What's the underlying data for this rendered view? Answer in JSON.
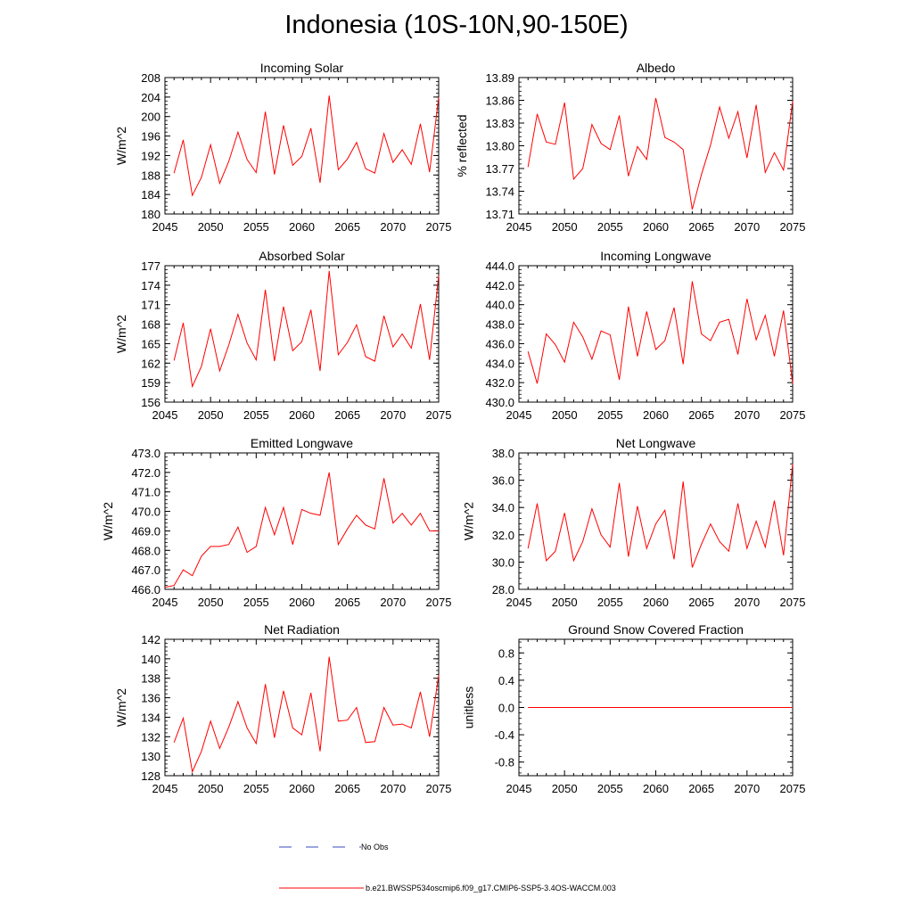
{
  "figure": {
    "title": "Indonesia (10S-10N,90-150E)"
  },
  "legend": {
    "items": [
      {
        "label": "No Obs",
        "color": "#3a4bbd",
        "style": "dashed"
      },
      {
        "label": "b.e21.BWSSP534oscmip6.f09_g17.CMIP6-SSP5-3.4OS-WACCM.003",
        "color": "#ff0000",
        "style": "solid"
      }
    ]
  },
  "chart_data": [
    {
      "type": "line",
      "title": "Incoming Solar",
      "ylabel": "W/m^2",
      "xlim": [
        2045,
        2075
      ],
      "ylim": [
        180,
        208
      ],
      "xticks": [
        "2045",
        "2050",
        "2055",
        "2060",
        "2065",
        "2070",
        "2075"
      ],
      "yticks": [
        "180",
        "184",
        "188",
        "192",
        "196",
        "200",
        "204",
        "208"
      ],
      "series": [
        {
          "color": "#ff0000",
          "x": [
            2046,
            2047,
            2048,
            2049,
            2050,
            2051,
            2052,
            2053,
            2054,
            2055,
            2056,
            2057,
            2058,
            2059,
            2060,
            2061,
            2062,
            2063,
            2064,
            2065,
            2066,
            2067,
            2068,
            2069,
            2070,
            2071,
            2072,
            2073,
            2074,
            2075
          ],
          "values": [
            188.4,
            195.2,
            183.8,
            187.5,
            194.2,
            186.3,
            190.8,
            196.8,
            191.2,
            188.5,
            201.0,
            188.1,
            198.2,
            190.0,
            191.8,
            197.6,
            186.4,
            204.3,
            189.1,
            191.3,
            194.7,
            189.3,
            188.4,
            196.5,
            190.6,
            193.2,
            190.2,
            198.5,
            188.6,
            204.0
          ]
        }
      ]
    },
    {
      "type": "line",
      "title": "Albedo",
      "ylabel": "% reflected",
      "xlim": [
        2045,
        2075
      ],
      "ylim": [
        13.71,
        13.89
      ],
      "xticks": [
        "2045",
        "2050",
        "2055",
        "2060",
        "2065",
        "2070",
        "2075"
      ],
      "yticks": [
        "13.71",
        "13.74",
        "13.77",
        "13.80",
        "13.83",
        "13.86",
        "13.89"
      ],
      "series": [
        {
          "color": "#ff0000",
          "x": [
            2046,
            2047,
            2048,
            2049,
            2050,
            2051,
            2052,
            2053,
            2054,
            2055,
            2056,
            2057,
            2058,
            2059,
            2060,
            2061,
            2062,
            2063,
            2064,
            2065,
            2066,
            2067,
            2068,
            2069,
            2070,
            2071,
            2072,
            2073,
            2074,
            2075
          ],
          "values": [
            13.772,
            13.842,
            13.805,
            13.802,
            13.857,
            13.756,
            13.77,
            13.828,
            13.803,
            13.795,
            13.84,
            13.76,
            13.799,
            13.782,
            13.863,
            13.811,
            13.805,
            13.795,
            13.716,
            13.762,
            13.801,
            13.851,
            13.81,
            13.845,
            13.784,
            13.854,
            13.765,
            13.791,
            13.768,
            13.859
          ]
        }
      ]
    },
    {
      "type": "line",
      "title": "Absorbed Solar",
      "ylabel": "W/m^2",
      "xlim": [
        2045,
        2075
      ],
      "ylim": [
        156,
        177
      ],
      "xticks": [
        "2045",
        "2050",
        "2055",
        "2060",
        "2065",
        "2070",
        "2075"
      ],
      "yticks": [
        "156",
        "159",
        "162",
        "165",
        "168",
        "171",
        "174",
        "177"
      ],
      "series": [
        {
          "color": "#ff0000",
          "x": [
            2046,
            2047,
            2048,
            2049,
            2050,
            2051,
            2052,
            2053,
            2054,
            2055,
            2056,
            2057,
            2058,
            2059,
            2060,
            2061,
            2062,
            2063,
            2064,
            2065,
            2066,
            2067,
            2068,
            2069,
            2070,
            2071,
            2072,
            2073,
            2074,
            2075
          ],
          "values": [
            162.4,
            168.2,
            158.4,
            161.5,
            167.3,
            160.8,
            164.8,
            169.5,
            165.1,
            162.5,
            173.3,
            162.3,
            170.7,
            163.9,
            165.3,
            170.2,
            160.8,
            176.2,
            163.3,
            165.2,
            167.9,
            163.0,
            162.3,
            169.3,
            164.5,
            166.5,
            164.3,
            171.1,
            162.5,
            175.5
          ]
        }
      ]
    },
    {
      "type": "line",
      "title": "Incoming Longwave",
      "ylabel": "",
      "xlim": [
        2045,
        2075
      ],
      "ylim": [
        430.0,
        444.0
      ],
      "xticks": [
        "2045",
        "2050",
        "2055",
        "2060",
        "2065",
        "2070",
        "2075"
      ],
      "yticks": [
        "430.0",
        "432.0",
        "434.0",
        "436.0",
        "438.0",
        "440.0",
        "442.0",
        "444.0"
      ],
      "series": [
        {
          "color": "#ff0000",
          "x": [
            2046,
            2047,
            2048,
            2049,
            2050,
            2051,
            2052,
            2053,
            2054,
            2055,
            2056,
            2057,
            2058,
            2059,
            2060,
            2061,
            2062,
            2063,
            2064,
            2065,
            2066,
            2067,
            2068,
            2069,
            2070,
            2071,
            2072,
            2073,
            2074,
            2075
          ],
          "values": [
            435.2,
            431.9,
            437.0,
            435.9,
            434.1,
            438.2,
            436.7,
            434.4,
            437.3,
            436.9,
            432.3,
            439.8,
            434.7,
            439.3,
            435.4,
            436.3,
            439.7,
            433.9,
            442.4,
            437.0,
            436.3,
            438.2,
            438.5,
            434.9,
            440.6,
            436.4,
            438.9,
            434.7,
            439.4,
            431.9
          ]
        }
      ]
    },
    {
      "type": "line",
      "title": "Emitted Longwave",
      "ylabel": "W/m^2",
      "xlim": [
        2045,
        2075
      ],
      "ylim": [
        466.0,
        473.0
      ],
      "xticks": [
        "2045",
        "2050",
        "2055",
        "2060",
        "2065",
        "2070",
        "2075"
      ],
      "yticks": [
        "466.0",
        "467.0",
        "468.0",
        "469.0",
        "470.0",
        "471.0",
        "472.0",
        "473.0"
      ],
      "series": [
        {
          "color": "#ff0000",
          "x": [
            2045,
            2046,
            2047,
            2048,
            2049,
            2050,
            2051,
            2052,
            2053,
            2054,
            2055,
            2056,
            2057,
            2058,
            2059,
            2060,
            2061,
            2062,
            2063,
            2064,
            2065,
            2066,
            2067,
            2068,
            2069,
            2070,
            2071,
            2072,
            2073,
            2074,
            2075
          ],
          "values": [
            466.1,
            466.2,
            467.0,
            466.7,
            467.7,
            468.2,
            468.2,
            468.3,
            469.2,
            467.9,
            468.2,
            470.2,
            468.8,
            470.2,
            468.3,
            470.1,
            469.9,
            469.8,
            472.0,
            468.3,
            469.1,
            469.8,
            469.3,
            469.1,
            471.7,
            469.4,
            469.9,
            469.3,
            469.9,
            469.0,
            469.0
          ]
        }
      ]
    },
    {
      "type": "line",
      "title": "Net Longwave",
      "ylabel": "W/m^2",
      "xlim": [
        2045,
        2075
      ],
      "ylim": [
        28.0,
        38.0
      ],
      "xticks": [
        "2045",
        "2050",
        "2055",
        "2060",
        "2065",
        "2070",
        "2075"
      ],
      "yticks": [
        "28.0",
        "30.0",
        "32.0",
        "34.0",
        "36.0",
        "38.0"
      ],
      "series": [
        {
          "color": "#ff0000",
          "x": [
            2046,
            2047,
            2048,
            2049,
            2050,
            2051,
            2052,
            2053,
            2054,
            2055,
            2056,
            2057,
            2058,
            2059,
            2060,
            2061,
            2062,
            2063,
            2064,
            2065,
            2066,
            2067,
            2068,
            2069,
            2070,
            2071,
            2072,
            2073,
            2074,
            2075
          ],
          "values": [
            31.0,
            34.3,
            30.1,
            30.8,
            33.6,
            30.1,
            31.5,
            33.9,
            32.0,
            31.1,
            35.8,
            30.4,
            34.1,
            31.0,
            32.8,
            33.8,
            30.2,
            35.9,
            29.6,
            31.3,
            32.8,
            31.5,
            30.8,
            34.3,
            31.0,
            33.0,
            31.1,
            34.5,
            30.5,
            37.2
          ]
        }
      ]
    },
    {
      "type": "line",
      "title": "Net Radiation",
      "ylabel": "W/m^2",
      "xlim": [
        2045,
        2075
      ],
      "ylim": [
        128,
        142
      ],
      "xticks": [
        "2045",
        "2050",
        "2055",
        "2060",
        "2065",
        "2070",
        "2075"
      ],
      "yticks": [
        "128",
        "130",
        "132",
        "134",
        "136",
        "138",
        "140",
        "142"
      ],
      "series": [
        {
          "color": "#ff0000",
          "x": [
            2046,
            2047,
            2048,
            2049,
            2050,
            2051,
            2052,
            2053,
            2054,
            2055,
            2056,
            2057,
            2058,
            2059,
            2060,
            2061,
            2062,
            2063,
            2064,
            2065,
            2066,
            2067,
            2068,
            2069,
            2070,
            2071,
            2072,
            2073,
            2074,
            2075
          ],
          "values": [
            131.4,
            133.9,
            128.4,
            130.5,
            133.6,
            130.8,
            133.0,
            135.6,
            132.9,
            131.3,
            137.4,
            131.9,
            136.7,
            132.9,
            132.2,
            136.5,
            130.5,
            140.2,
            133.6,
            133.7,
            135.0,
            131.4,
            131.5,
            135.0,
            133.2,
            133.3,
            132.9,
            136.6,
            132.0,
            138.3
          ]
        }
      ]
    },
    {
      "type": "line",
      "title": "Ground Snow Covered Fraction",
      "ylabel": "unitless",
      "xlim": [
        2045,
        2075
      ],
      "ylim": [
        -1.0,
        1.0
      ],
      "xticks": [
        "2045",
        "2050",
        "2055",
        "2060",
        "2065",
        "2070",
        "2075"
      ],
      "yticks": [
        "-0.8",
        "-0.4",
        "0.0",
        "0.4",
        "0.8"
      ],
      "series": [
        {
          "color": "#ff0000",
          "x": [
            2046,
            2075
          ],
          "values": [
            0.0,
            0.0
          ]
        }
      ]
    }
  ]
}
